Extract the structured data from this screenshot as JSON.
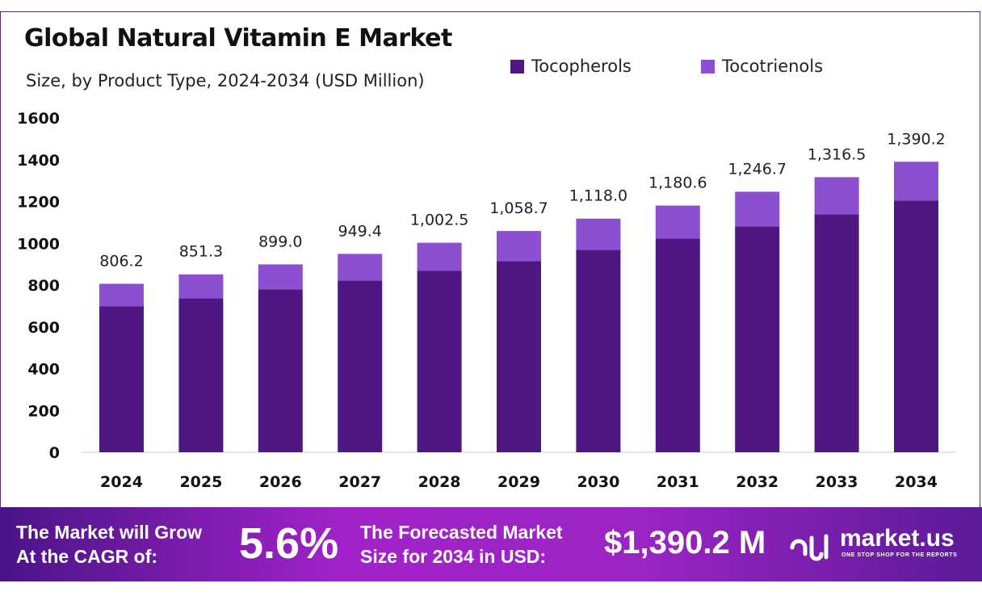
{
  "chart_data": {
    "type": "bar",
    "stacked": true,
    "title": "Global Natural Vitamin E Market",
    "subtitle": "Size, by Product Type, 2024-2034 (USD Million)",
    "categories": [
      "2024",
      "2025",
      "2026",
      "2027",
      "2028",
      "2029",
      "2030",
      "2031",
      "2032",
      "2033",
      "2034"
    ],
    "series": [
      {
        "name": "Tocopherols",
        "color": "#4e1782",
        "values": [
          699,
          737,
          780,
          822,
          869,
          915,
          969,
          1023,
          1081,
          1139,
          1205
        ]
      },
      {
        "name": "Tocotrienols",
        "color": "#8b4fcf",
        "values": [
          107.2,
          114.3,
          119.0,
          127.4,
          133.5,
          143.7,
          149.0,
          157.6,
          165.7,
          177.5,
          185.2
        ]
      }
    ],
    "totals": [
      "806.2",
      "851.3",
      "899.0",
      "949.4",
      "1,002.5",
      "1,058.7",
      "1,118.0",
      "1,180.6",
      "1,246.7",
      "1,316.5",
      "1,390.2"
    ],
    "yticks": [
      "0",
      "200",
      "400",
      "600",
      "800",
      "1000",
      "1200",
      "1400",
      "1600"
    ],
    "ylim": [
      0,
      1600
    ],
    "grid": false,
    "legend_position": "top-right"
  },
  "footer": {
    "cagr_label_1": "The Market will Grow",
    "cagr_label_2": "At the CAGR of:",
    "cagr_value": "5.6%",
    "forecast_label_1": "The Forecasted Market",
    "forecast_label_2": "Size for 2034 in USD:",
    "forecast_value": "$1,390.2 M",
    "brand": "market.us",
    "tagline": "ONE STOP SHOP FOR THE REPORTS"
  }
}
